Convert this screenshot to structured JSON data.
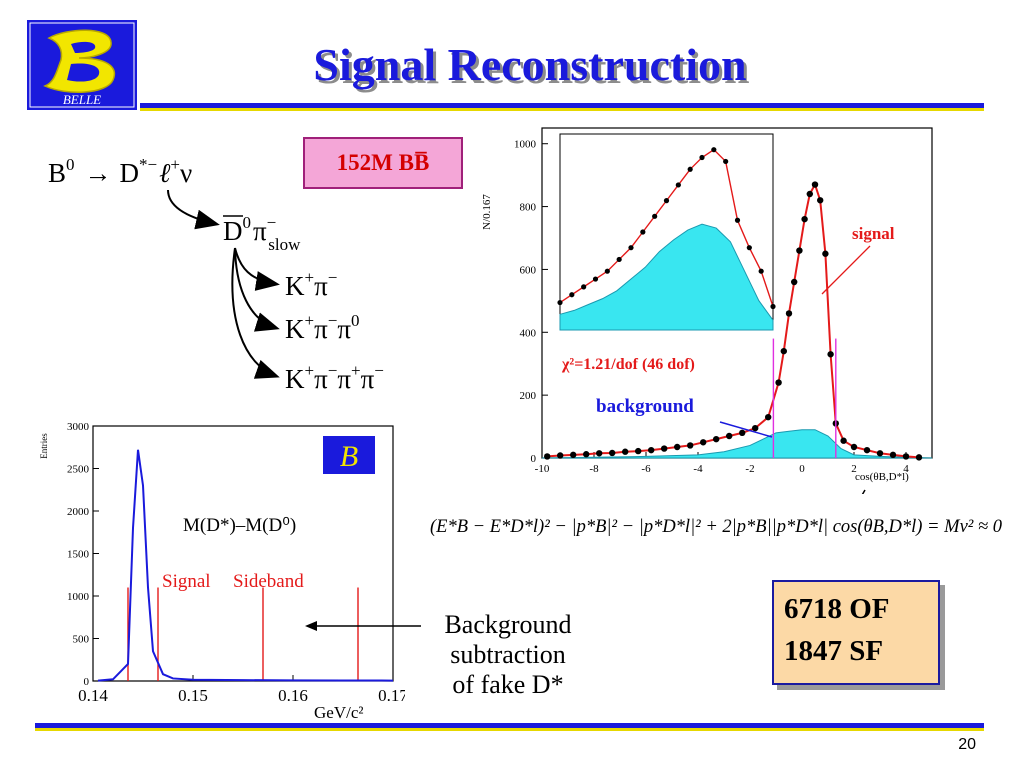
{
  "title": "Signal Reconstruction",
  "page_number": "20",
  "logo": {
    "letter": "B",
    "caption": "BELLE"
  },
  "sample_badge": "152M BB̅",
  "decay_chain": {
    "top": {
      "parent": "B",
      "parent_sup": "0",
      "arrow": "→",
      "d": "D",
      "d_sup": "*−",
      "lep": "ℓ",
      "lep_sup": "+",
      "nu": "ν"
    },
    "second": {
      "d": "D",
      "d_sup": "0",
      "pi": "π",
      "pi_sup": "−",
      "pi_sub": "slow"
    },
    "modes": [
      {
        "k": "K",
        "k_sup": "+",
        "rest": "π",
        "rest_sup": "−"
      },
      {
        "k": "K",
        "k_sup": "+",
        "rest": "π",
        "rest_sup": "−",
        "rest2": "π",
        "rest2_sup": "0"
      },
      {
        "k": "K",
        "k_sup": "+",
        "rest": "π",
        "rest_sup": "−",
        "rest2": "π",
        "rest2_sup": "+",
        "rest3": "π",
        "rest3_sup": "−"
      }
    ]
  },
  "cos_plot": {
    "ylabel": "N/0.167",
    "xlabel": "cos(θB,D*l)",
    "chi2": "χ²=1.21/dof  (46 dof)",
    "signal_label": "signal",
    "background_label": "background"
  },
  "mass_plot": {
    "ylabel": "Entries",
    "label": "M(D*)–M(D⁰)",
    "signal_label": "Signal",
    "sideband_label": "Sideband",
    "xunit": "GeV/c²"
  },
  "bg_note": [
    "Background",
    "subtraction",
    "of fake D*"
  ],
  "formula": "(E*B − E*D*l)² − |p*B|² − |p*D*l|² + 2|p*B||p*D*l| cos(θB,D*l) = Mν² ≈ 0",
  "counts": {
    "of": "6718 OF",
    "sf": "1847 SF"
  },
  "chart_data": [
    {
      "type": "scatter",
      "ylabel": "N/0.167",
      "xlabel": "cos(θB,D*l)",
      "xlim": [
        -10,
        5
      ],
      "ylim": [
        0,
        1050
      ],
      "xticks": [
        -10,
        -8,
        -6,
        -4,
        -2,
        0,
        2,
        4
      ],
      "yticks": [
        0,
        200,
        400,
        600,
        800,
        1000
      ],
      "series": [
        {
          "name": "data",
          "x": [
            -9.8,
            -9.3,
            -8.8,
            -8.3,
            -7.8,
            -7.3,
            -6.8,
            -6.3,
            -5.8,
            -5.3,
            -4.8,
            -4.3,
            -3.8,
            -3.3,
            -2.8,
            -2.3,
            -1.8,
            -1.3,
            -0.9,
            -0.7,
            -0.5,
            -0.3,
            -0.1,
            0.1,
            0.3,
            0.5,
            0.7,
            0.9,
            1.1,
            1.3,
            1.6,
            2.0,
            2.5,
            3.0,
            3.5,
            4.0,
            4.5
          ],
          "y": [
            5,
            8,
            10,
            12,
            15,
            16,
            20,
            22,
            25,
            30,
            35,
            40,
            50,
            60,
            70,
            80,
            95,
            130,
            240,
            340,
            460,
            560,
            660,
            760,
            840,
            870,
            820,
            650,
            330,
            110,
            55,
            35,
            25,
            15,
            10,
            5,
            2
          ]
        },
        {
          "name": "background",
          "x": [
            -10,
            -6,
            -4,
            -3,
            -2,
            -1.5,
            -1,
            -0.5,
            0,
            0.5,
            1,
            1.5,
            2,
            3,
            5
          ],
          "y": [
            0,
            5,
            10,
            20,
            40,
            60,
            80,
            85,
            90,
            90,
            70,
            30,
            10,
            5,
            0
          ]
        }
      ]
    },
    {
      "type": "line",
      "ylabel": "Entries",
      "xlabel": "GeV/c²",
      "label": "M(D*)–M(D⁰)",
      "xlim": [
        0.14,
        0.17
      ],
      "ylim": [
        0,
        3000
      ],
      "xticks": [
        0.14,
        0.15,
        0.16,
        0.17
      ],
      "yticks": [
        0,
        500,
        1000,
        1500,
        2000,
        2500,
        3000
      ],
      "series": [
        {
          "name": "data",
          "x": [
            0.1405,
            0.142,
            0.1435,
            0.144,
            0.1445,
            0.145,
            0.1455,
            0.146,
            0.147,
            0.148,
            0.15,
            0.155,
            0.16,
            0.165,
            0.17
          ],
          "y": [
            5,
            20,
            200,
            1800,
            2720,
            2300,
            1100,
            350,
            80,
            30,
            15,
            10,
            8,
            6,
            5
          ]
        }
      ],
      "signal_window": [
        0.1435,
        0.1465
      ],
      "sideband_window": [
        0.157,
        0.1665
      ]
    }
  ]
}
